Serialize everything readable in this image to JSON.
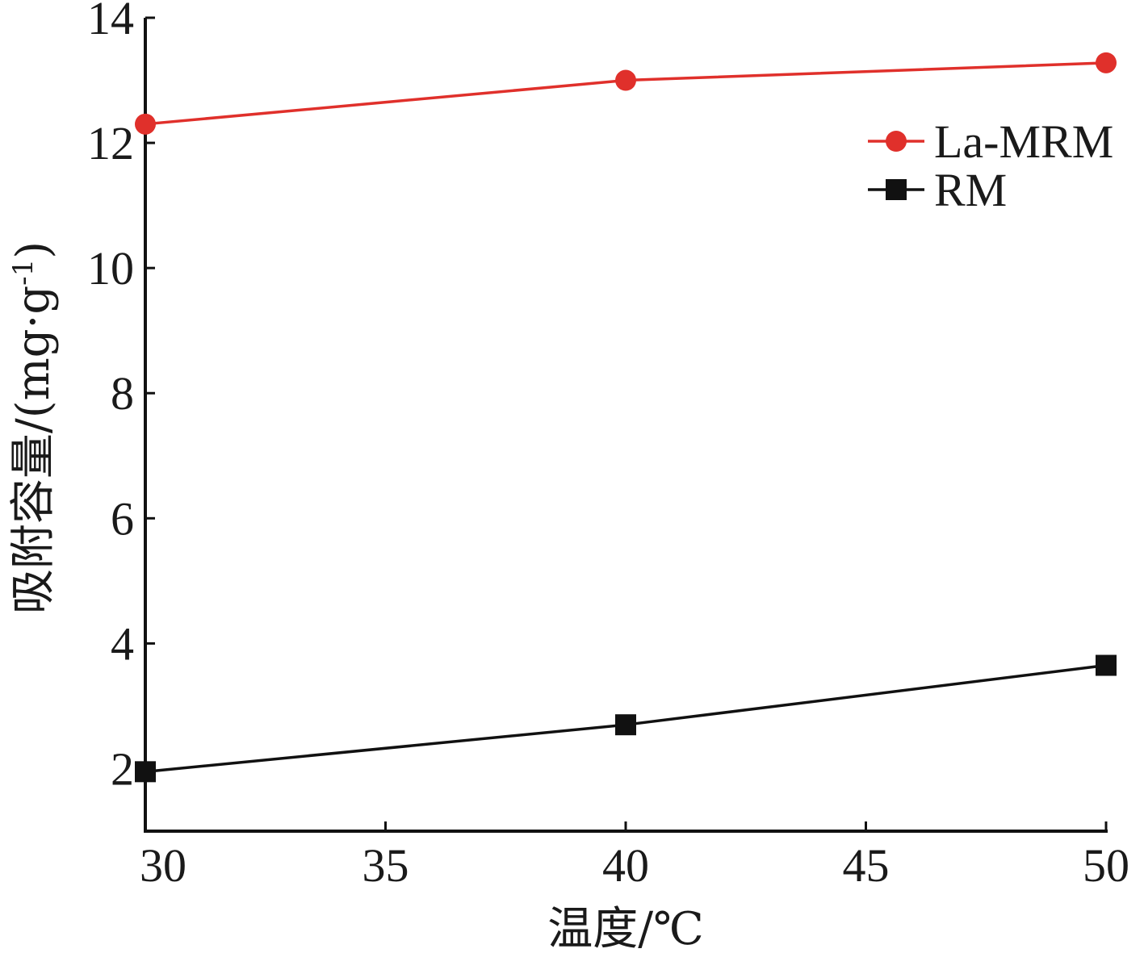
{
  "chart_data": {
    "type": "line",
    "xlabel": "温度/℃",
    "ylabel": "吸附容量/(mg·g",
    "ylabel_sup": "-1",
    "ylabel_close": ")",
    "x": [
      30,
      40,
      50
    ],
    "xlim": [
      30,
      50
    ],
    "ylim": [
      1,
      14
    ],
    "xticks": [
      30,
      35,
      40,
      45,
      50
    ],
    "yticks": [
      2,
      4,
      6,
      8,
      10,
      12,
      14
    ],
    "grid": false,
    "legend_position": "top-right",
    "series": [
      {
        "name": "La-MRM",
        "values": [
          12.3,
          13.0,
          13.28
        ],
        "color": "#e0302b",
        "marker": "circle"
      },
      {
        "name": "RM",
        "values": [
          1.95,
          2.7,
          3.65
        ],
        "color": "#111111",
        "marker": "square"
      }
    ]
  }
}
